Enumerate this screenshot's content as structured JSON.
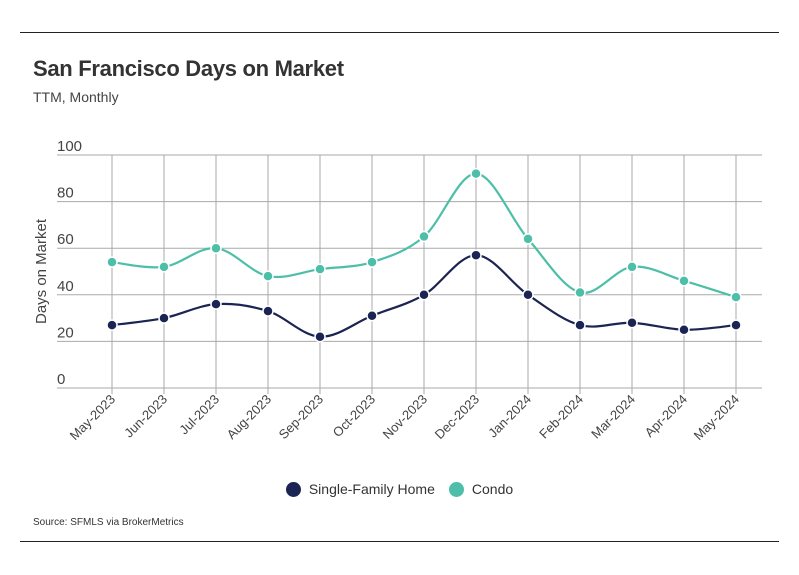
{
  "chart_data": {
    "type": "line",
    "title": "San Francisco Days on Market",
    "subtitle": "TTM, Monthly",
    "xlabel": "",
    "ylabel": "Days on Market",
    "ylim": [
      0,
      100
    ],
    "yticks": [
      0,
      20,
      40,
      60,
      80,
      100
    ],
    "grid": true,
    "legend_position": "bottom",
    "categories": [
      "May-2023",
      "Jun-2023",
      "Jul-2023",
      "Aug-2023",
      "Sep-2023",
      "Oct-2023",
      "Nov-2023",
      "Dec-2023",
      "Jan-2024",
      "Feb-2024",
      "Mar-2024",
      "Apr-2024",
      "May-2024"
    ],
    "series": [
      {
        "name": "Single-Family Home",
        "color": "#1b2452",
        "values": [
          27,
          30,
          36,
          33,
          22,
          31,
          40,
          57,
          40,
          27,
          28,
          25,
          27
        ]
      },
      {
        "name": "Condo",
        "color": "#4dbfa8",
        "values": [
          54,
          52,
          60,
          48,
          51,
          54,
          65,
          92,
          64,
          41,
          52,
          46,
          39
        ]
      }
    ],
    "source": "Source:  SFMLS via BrokerMetrics"
  }
}
